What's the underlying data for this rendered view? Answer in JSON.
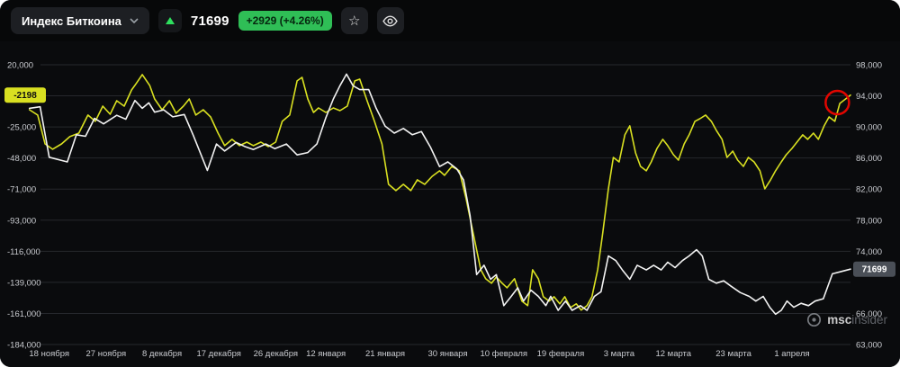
{
  "topbar": {
    "symbol": "Индекс Биткоина",
    "price": "71699",
    "change": "+2929 (+4.26%)"
  },
  "watermark": {
    "bold": "msc",
    "light": "insider"
  },
  "colors": {
    "line_yellow": "#d9e021",
    "line_white": "#f2f2f2",
    "grid": "#26282d",
    "axis_text": "#c9cbd0",
    "annotation_red": "#e10600",
    "green_badge_bg": "#2fbe56",
    "price_badge_bg": "#4a4f57",
    "background": "#0a0b0d"
  },
  "chart_data": {
    "type": "line",
    "title": "Индекс Биткоина",
    "grid_count": 10,
    "left_axis": {
      "top": 20000,
      "step_per_grid": 22750,
      "ticks": [
        {
          "grid": 0,
          "label": "20,000"
        },
        {
          "grid": 2,
          "label": "-25,000"
        },
        {
          "grid": 3,
          "label": "-48,000"
        },
        {
          "grid": 4,
          "label": "-71,000"
        },
        {
          "grid": 5,
          "label": "-93,000"
        },
        {
          "grid": 6,
          "label": "-116,000"
        },
        {
          "grid": 7,
          "label": "-139,000"
        },
        {
          "grid": 8,
          "label": "-161,000"
        },
        {
          "grid": 9,
          "label": "-184,000"
        }
      ]
    },
    "right_axis": {
      "top": 98000,
      "step_per_grid": 4000,
      "ticks": [
        {
          "grid": 0,
          "label": "98,000"
        },
        {
          "grid": 1,
          "label": "94,000"
        },
        {
          "grid": 2,
          "label": "90,000"
        },
        {
          "grid": 3,
          "label": "86,000"
        },
        {
          "grid": 4,
          "label": "82,000"
        },
        {
          "grid": 5,
          "label": "78,000"
        },
        {
          "grid": 6,
          "label": "74,000"
        },
        {
          "grid": 8,
          "label": "66,000"
        },
        {
          "grid": 9,
          "label": "63,000"
        }
      ]
    },
    "x_ticks": [
      {
        "x": 0.027,
        "label": "18 ноября"
      },
      {
        "x": 0.096,
        "label": "27 ноября"
      },
      {
        "x": 0.164,
        "label": "8 декабря"
      },
      {
        "x": 0.233,
        "label": "17 декабря"
      },
      {
        "x": 0.302,
        "label": "26 декабря"
      },
      {
        "x": 0.363,
        "label": "12 января"
      },
      {
        "x": 0.435,
        "label": "21 января"
      },
      {
        "x": 0.511,
        "label": "30 января"
      },
      {
        "x": 0.579,
        "label": "10 февраля"
      },
      {
        "x": 0.648,
        "label": "19 февраля"
      },
      {
        "x": 0.719,
        "label": "3 марта"
      },
      {
        "x": 0.785,
        "label": "12 марта"
      },
      {
        "x": 0.858,
        "label": "23 марта"
      },
      {
        "x": 0.929,
        "label": "1 апреля"
      }
    ],
    "annotation": {
      "type": "circle",
      "x": 0.984,
      "value": -7650,
      "axis": "left",
      "radius": 13,
      "color": "#e10600"
    },
    "series": [
      {
        "name": "yellow-index",
        "axis": "left",
        "color": "#d9e021",
        "current": -2198,
        "badge": "-2198",
        "points": [
          [
            0.003,
            -12900
          ],
          [
            0.013,
            -16800
          ],
          [
            0.022,
            -37900
          ],
          [
            0.031,
            -41800
          ],
          [
            0.042,
            -37900
          ],
          [
            0.052,
            -32600
          ],
          [
            0.063,
            -30000
          ],
          [
            0.074,
            -16800
          ],
          [
            0.083,
            -21400
          ],
          [
            0.092,
            -10300
          ],
          [
            0.101,
            -16200
          ],
          [
            0.109,
            -6300
          ],
          [
            0.118,
            -10300
          ],
          [
            0.127,
            1600
          ],
          [
            0.131,
            4900
          ],
          [
            0.14,
            12800
          ],
          [
            0.149,
            4900
          ],
          [
            0.155,
            -5000
          ],
          [
            0.164,
            -12900
          ],
          [
            0.173,
            -6300
          ],
          [
            0.181,
            -15500
          ],
          [
            0.19,
            -10300
          ],
          [
            0.197,
            -5000
          ],
          [
            0.205,
            -16800
          ],
          [
            0.214,
            -12900
          ],
          [
            0.223,
            -18200
          ],
          [
            0.232,
            -30000
          ],
          [
            0.24,
            -39200
          ],
          [
            0.249,
            -34600
          ],
          [
            0.258,
            -39200
          ],
          [
            0.267,
            -36600
          ],
          [
            0.275,
            -39200
          ],
          [
            0.284,
            -36600
          ],
          [
            0.293,
            -39900
          ],
          [
            0.302,
            -36600
          ],
          [
            0.31,
            -21400
          ],
          [
            0.319,
            -16800
          ],
          [
            0.328,
            8200
          ],
          [
            0.334,
            10800
          ],
          [
            0.341,
            -5000
          ],
          [
            0.348,
            -14900
          ],
          [
            0.354,
            -11600
          ],
          [
            0.363,
            -14900
          ],
          [
            0.372,
            -11600
          ],
          [
            0.38,
            -13600
          ],
          [
            0.389,
            -10300
          ],
          [
            0.398,
            8200
          ],
          [
            0.404,
            9500
          ],
          [
            0.413,
            -6300
          ],
          [
            0.422,
            -21400
          ],
          [
            0.431,
            -37900
          ],
          [
            0.439,
            -67500
          ],
          [
            0.448,
            -72100
          ],
          [
            0.457,
            -67500
          ],
          [
            0.466,
            -72100
          ],
          [
            0.474,
            -64200
          ],
          [
            0.483,
            -67500
          ],
          [
            0.492,
            -61600
          ],
          [
            0.501,
            -57600
          ],
          [
            0.507,
            -60900
          ],
          [
            0.516,
            -54400
          ],
          [
            0.525,
            -57600
          ],
          [
            0.533,
            -77400
          ],
          [
            0.542,
            -103700
          ],
          [
            0.551,
            -130000
          ],
          [
            0.557,
            -136600
          ],
          [
            0.564,
            -139900
          ],
          [
            0.57,
            -135300
          ],
          [
            0.577,
            -139900
          ],
          [
            0.583,
            -143200
          ],
          [
            0.592,
            -136600
          ],
          [
            0.601,
            -153000
          ],
          [
            0.608,
            -156300
          ],
          [
            0.614,
            -130000
          ],
          [
            0.621,
            -136600
          ],
          [
            0.627,
            -149800
          ],
          [
            0.634,
            -153000
          ],
          [
            0.64,
            -149800
          ],
          [
            0.647,
            -155000
          ],
          [
            0.653,
            -149800
          ],
          [
            0.66,
            -157700
          ],
          [
            0.667,
            -155000
          ],
          [
            0.673,
            -159600
          ],
          [
            0.68,
            -156300
          ],
          [
            0.686,
            -149800
          ],
          [
            0.693,
            -130000
          ],
          [
            0.699,
            -103700
          ],
          [
            0.706,
            -70800
          ],
          [
            0.712,
            -47800
          ],
          [
            0.719,
            -51100
          ],
          [
            0.726,
            -31300
          ],
          [
            0.732,
            -24700
          ],
          [
            0.739,
            -44500
          ],
          [
            0.745,
            -54400
          ],
          [
            0.752,
            -57600
          ],
          [
            0.758,
            -51100
          ],
          [
            0.765,
            -41200
          ],
          [
            0.772,
            -34600
          ],
          [
            0.778,
            -39200
          ],
          [
            0.785,
            -45800
          ],
          [
            0.791,
            -49800
          ],
          [
            0.798,
            -37900
          ],
          [
            0.804,
            -31300
          ],
          [
            0.811,
            -21400
          ],
          [
            0.817,
            -19500
          ],
          [
            0.824,
            -16800
          ],
          [
            0.831,
            -21400
          ],
          [
            0.837,
            -28000
          ],
          [
            0.844,
            -34600
          ],
          [
            0.85,
            -47800
          ],
          [
            0.857,
            -43200
          ],
          [
            0.863,
            -49800
          ],
          [
            0.87,
            -54400
          ],
          [
            0.876,
            -47800
          ],
          [
            0.883,
            -51100
          ],
          [
            0.89,
            -57600
          ],
          [
            0.896,
            -70800
          ],
          [
            0.903,
            -64200
          ],
          [
            0.909,
            -57600
          ],
          [
            0.916,
            -51100
          ],
          [
            0.922,
            -45800
          ],
          [
            0.929,
            -41200
          ],
          [
            0.935,
            -36600
          ],
          [
            0.942,
            -31300
          ],
          [
            0.948,
            -34600
          ],
          [
            0.955,
            -30000
          ],
          [
            0.961,
            -34600
          ],
          [
            0.968,
            -24700
          ],
          [
            0.974,
            -18200
          ],
          [
            0.981,
            -21400
          ],
          [
            0.987,
            -8300
          ],
          [
            0.993,
            -5500
          ],
          [
            1,
            -2198
          ]
        ]
      },
      {
        "name": "white-price",
        "axis": "right",
        "color": "#f2f2f2",
        "current": 71699,
        "badge": "71699",
        "points": [
          [
            0.003,
            92400
          ],
          [
            0.016,
            92600
          ],
          [
            0.027,
            86100
          ],
          [
            0.049,
            85500
          ],
          [
            0.06,
            89000
          ],
          [
            0.071,
            88800
          ],
          [
            0.082,
            91100
          ],
          [
            0.093,
            90400
          ],
          [
            0.109,
            91500
          ],
          [
            0.12,
            91000
          ],
          [
            0.131,
            93400
          ],
          [
            0.14,
            92400
          ],
          [
            0.148,
            93100
          ],
          [
            0.155,
            91900
          ],
          [
            0.166,
            92200
          ],
          [
            0.177,
            91300
          ],
          [
            0.191,
            91600
          ],
          [
            0.202,
            88900
          ],
          [
            0.219,
            84400
          ],
          [
            0.23,
            87800
          ],
          [
            0.24,
            86900
          ],
          [
            0.254,
            88000
          ],
          [
            0.264,
            87500
          ],
          [
            0.275,
            87100
          ],
          [
            0.29,
            87800
          ],
          [
            0.301,
            87200
          ],
          [
            0.315,
            87800
          ],
          [
            0.328,
            86400
          ],
          [
            0.341,
            86700
          ],
          [
            0.352,
            87800
          ],
          [
            0.363,
            91200
          ],
          [
            0.372,
            93600
          ],
          [
            0.38,
            95300
          ],
          [
            0.388,
            96800
          ],
          [
            0.396,
            95300
          ],
          [
            0.404,
            94800
          ],
          [
            0.415,
            94800
          ],
          [
            0.424,
            92400
          ],
          [
            0.435,
            90100
          ],
          [
            0.446,
            89200
          ],
          [
            0.457,
            89800
          ],
          [
            0.468,
            89000
          ],
          [
            0.479,
            89400
          ],
          [
            0.49,
            87400
          ],
          [
            0.501,
            84900
          ],
          [
            0.511,
            85500
          ],
          [
            0.522,
            84600
          ],
          [
            0.53,
            83200
          ],
          [
            0.538,
            78600
          ],
          [
            0.546,
            71000
          ],
          [
            0.555,
            72200
          ],
          [
            0.563,
            70400
          ],
          [
            0.57,
            71000
          ],
          [
            0.579,
            67000
          ],
          [
            0.588,
            68200
          ],
          [
            0.596,
            69300
          ],
          [
            0.603,
            67600
          ],
          [
            0.612,
            69000
          ],
          [
            0.621,
            68200
          ],
          [
            0.63,
            67000
          ],
          [
            0.636,
            68200
          ],
          [
            0.645,
            66400
          ],
          [
            0.654,
            67600
          ],
          [
            0.662,
            66400
          ],
          [
            0.672,
            67000
          ],
          [
            0.68,
            66400
          ],
          [
            0.689,
            68200
          ],
          [
            0.697,
            68800
          ],
          [
            0.706,
            73400
          ],
          [
            0.715,
            72800
          ],
          [
            0.723,
            71600
          ],
          [
            0.732,
            70400
          ],
          [
            0.741,
            72200
          ],
          [
            0.752,
            71600
          ],
          [
            0.761,
            72200
          ],
          [
            0.77,
            71600
          ],
          [
            0.778,
            72600
          ],
          [
            0.787,
            71900
          ],
          [
            0.796,
            72800
          ],
          [
            0.804,
            73400
          ],
          [
            0.813,
            74200
          ],
          [
            0.82,
            73400
          ],
          [
            0.828,
            70400
          ],
          [
            0.837,
            69900
          ],
          [
            0.846,
            70200
          ],
          [
            0.855,
            69500
          ],
          [
            0.866,
            68700
          ],
          [
            0.877,
            68200
          ],
          [
            0.885,
            67600
          ],
          [
            0.894,
            68200
          ],
          [
            0.902,
            66800
          ],
          [
            0.909,
            65900
          ],
          [
            0.916,
            66400
          ],
          [
            0.923,
            67600
          ],
          [
            0.931,
            66800
          ],
          [
            0.94,
            67300
          ],
          [
            0.949,
            67000
          ],
          [
            0.957,
            67600
          ],
          [
            0.967,
            67900
          ],
          [
            0.978,
            71100
          ],
          [
            0.989,
            71400
          ],
          [
            1,
            71699
          ]
        ]
      }
    ]
  }
}
